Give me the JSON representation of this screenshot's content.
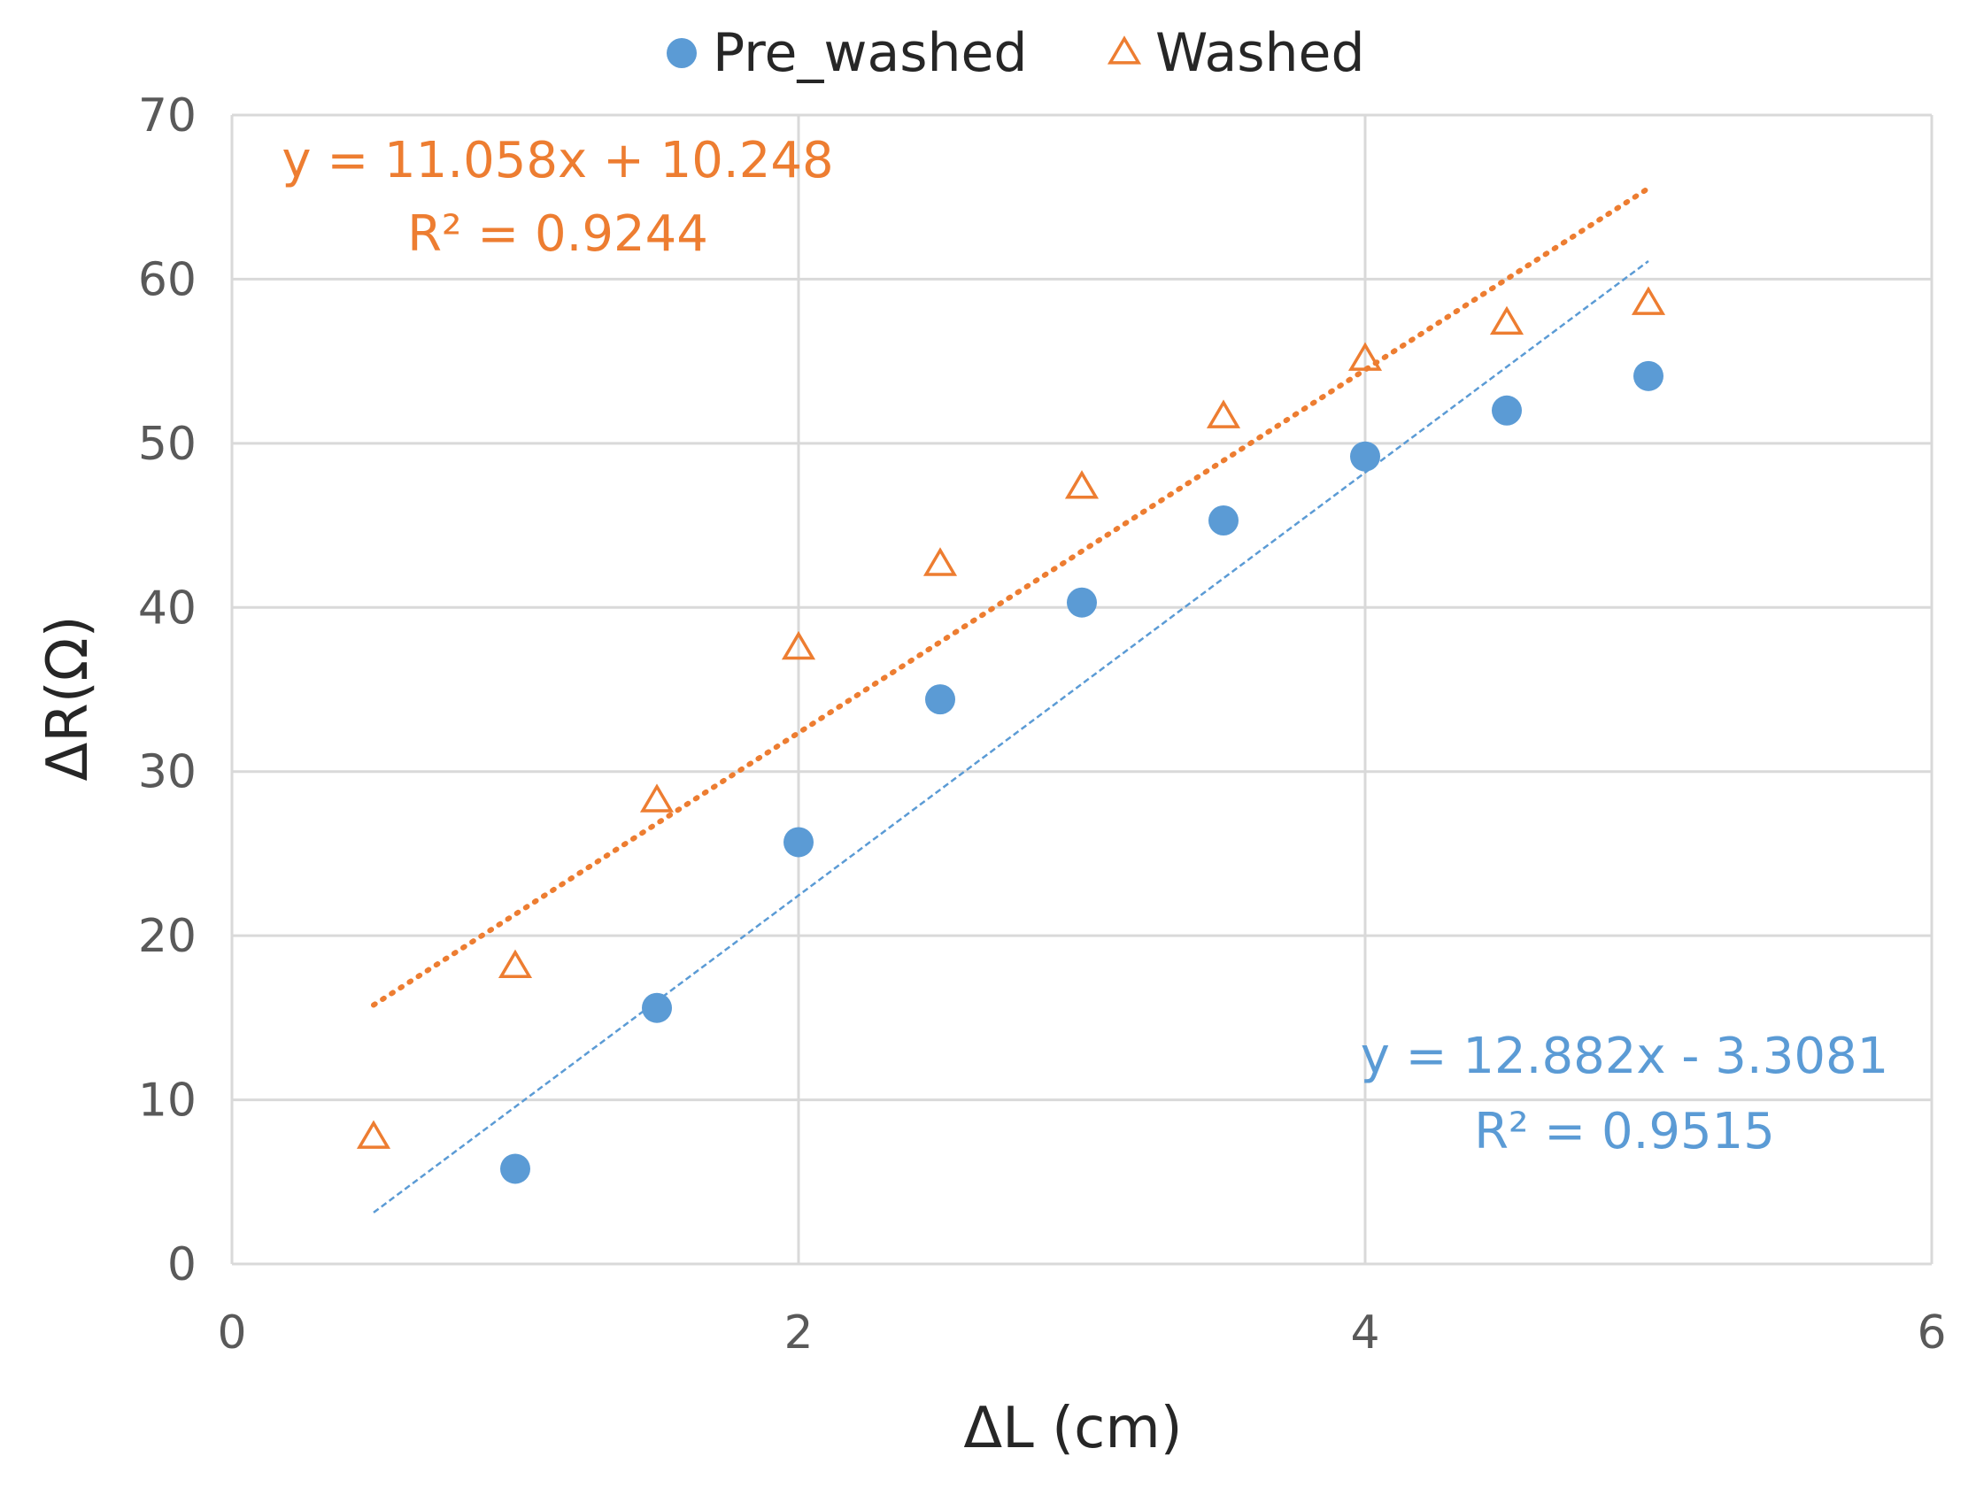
{
  "chart_data": {
    "type": "scatter",
    "title": "",
    "xlabel": "ΔL (cm)",
    "ylabel": "ΔR(Ω)",
    "xlim": [
      0,
      6
    ],
    "ylim": [
      0,
      70
    ],
    "xticks": [
      0,
      2,
      4,
      6
    ],
    "yticks": [
      0,
      10,
      20,
      30,
      40,
      50,
      60,
      70
    ],
    "grid": true,
    "legend_position": "top",
    "series": [
      {
        "name": "Pre_washed",
        "marker": "circle",
        "color": "#5b9bd5",
        "x": [
          1,
          1.5,
          2,
          2.5,
          3,
          3.5,
          4,
          4.5,
          5
        ],
        "y": [
          5.8,
          15.6,
          25.7,
          34.4,
          40.3,
          45.3,
          49.2,
          52.0,
          54.1
        ],
        "trendline": {
          "slope": 12.882,
          "intercept": -3.3081,
          "x_range": [
            0.5,
            5
          ],
          "style": "dashed",
          "equation": "y = 12.882x - 3.3081",
          "r2": "R² = 0.9515",
          "label_position": "bottom-right"
        }
      },
      {
        "name": "Washed",
        "marker": "triangle",
        "color": "#ed7d31",
        "x": [
          0.5,
          1,
          1.5,
          2,
          2.5,
          3,
          3.5,
          4,
          4.5,
          5
        ],
        "y": [
          7.7,
          18.1,
          28.2,
          37.5,
          42.6,
          47.3,
          51.6,
          55.1,
          57.3,
          58.5
        ],
        "trendline": {
          "slope": 11.058,
          "intercept": 10.248,
          "x_range": [
            0.5,
            5
          ],
          "style": "dotted",
          "equation": "y = 11.058x + 10.248",
          "r2": "R² = 0.9244",
          "label_position": "top-left"
        }
      }
    ]
  }
}
